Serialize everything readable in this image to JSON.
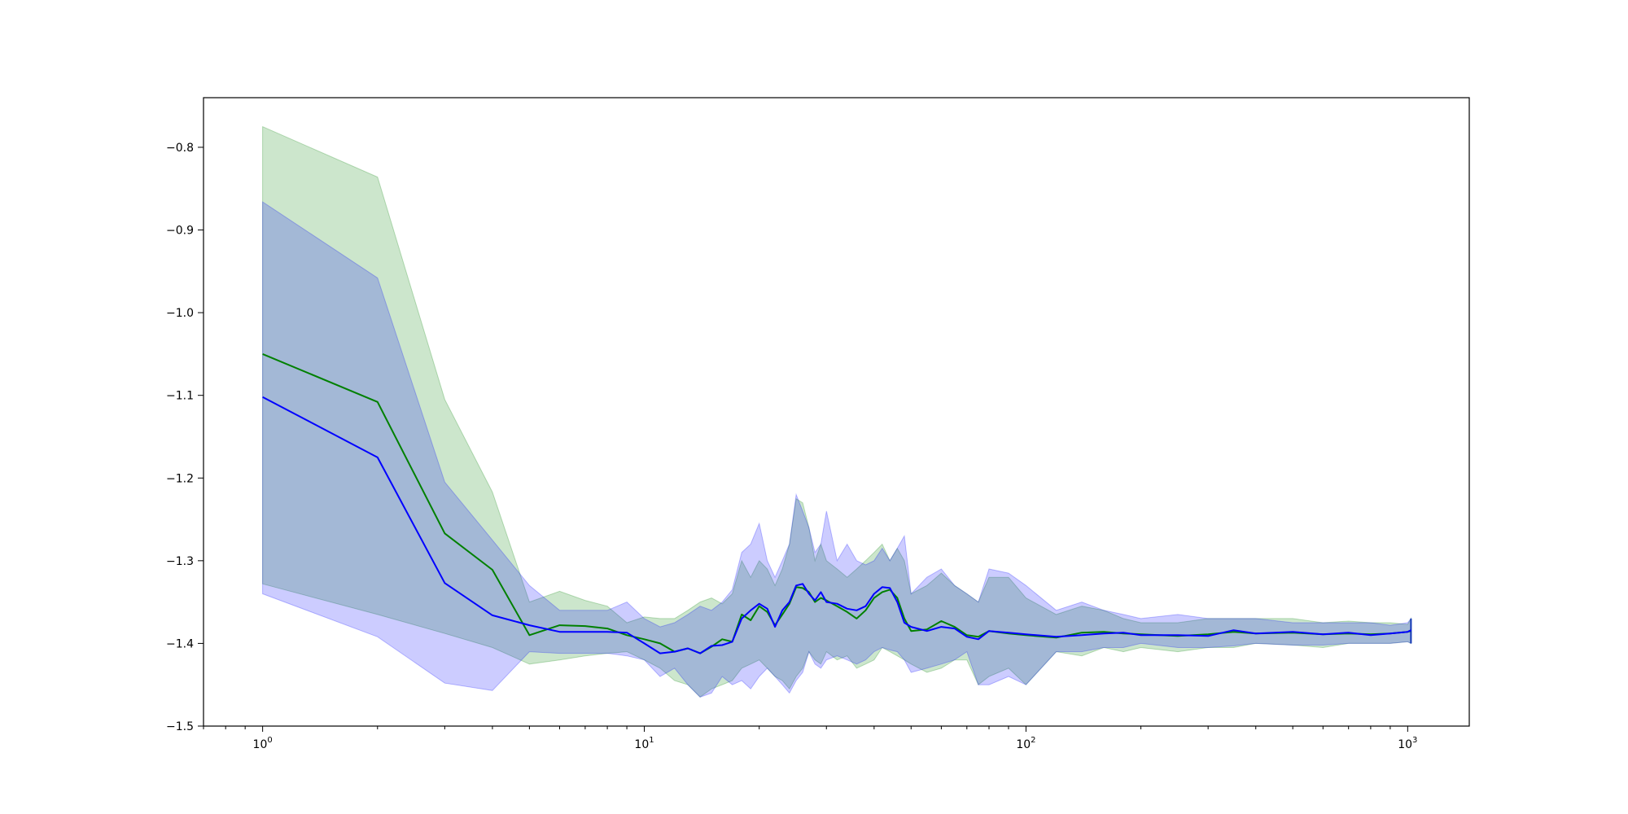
{
  "chart_data": {
    "type": "line",
    "title": "",
    "xlabel": "",
    "ylabel": "",
    "xscale": "log",
    "xlim": [
      0.7,
      1450
    ],
    "ylim": [
      -1.5,
      -0.74
    ],
    "grid": false,
    "legend": "none",
    "x_ticks": [
      {
        "value": 1,
        "base": "10",
        "exp": "0"
      },
      {
        "value": 10,
        "base": "10",
        "exp": "1"
      },
      {
        "value": 100,
        "base": "10",
        "exp": "2"
      },
      {
        "value": 1000,
        "base": "10",
        "exp": "3"
      }
    ],
    "y_ticks": [
      {
        "value": -0.8,
        "label": "−0.8"
      },
      {
        "value": -0.9,
        "label": "−0.9"
      },
      {
        "value": -1.0,
        "label": "−1.0"
      },
      {
        "value": -1.1,
        "label": "−1.1"
      },
      {
        "value": -1.2,
        "label": "−1.2"
      },
      {
        "value": -1.3,
        "label": "−1.3"
      },
      {
        "value": -1.4,
        "label": "−1.4"
      },
      {
        "value": -1.5,
        "label": "−1.5"
      }
    ],
    "series": [
      {
        "color": "#008000",
        "band_color": "#008000",
        "band_opacity": 0.2,
        "x": [
          1,
          2,
          3,
          4,
          5,
          6,
          7,
          8,
          9,
          10,
          11,
          12,
          13,
          14,
          15,
          16,
          17,
          18,
          19,
          20,
          21,
          22,
          23,
          24,
          25,
          26,
          27,
          28,
          29,
          30,
          32,
          34,
          36,
          38,
          40,
          42,
          44,
          46,
          48,
          50,
          55,
          60,
          65,
          70,
          75,
          80,
          90,
          100,
          120,
          140,
          160,
          180,
          200,
          250,
          300,
          350,
          400,
          500,
          600,
          700,
          800,
          900,
          1000,
          1020
        ],
        "y": [
          -1.05,
          -1.108,
          -1.267,
          -1.311,
          -1.39,
          -1.378,
          -1.379,
          -1.382,
          -1.39,
          -1.395,
          -1.4,
          -1.41,
          -1.406,
          -1.412,
          -1.404,
          -1.395,
          -1.398,
          -1.365,
          -1.372,
          -1.355,
          -1.362,
          -1.378,
          -1.365,
          -1.352,
          -1.332,
          -1.333,
          -1.338,
          -1.35,
          -1.345,
          -1.348,
          -1.355,
          -1.362,
          -1.37,
          -1.36,
          -1.345,
          -1.338,
          -1.335,
          -1.345,
          -1.37,
          -1.385,
          -1.383,
          -1.373,
          -1.38,
          -1.39,
          -1.392,
          -1.385,
          -1.388,
          -1.39,
          -1.393,
          -1.387,
          -1.386,
          -1.388,
          -1.389,
          -1.391,
          -1.389,
          -1.386,
          -1.388,
          -1.387,
          -1.389,
          -1.388,
          -1.389,
          -1.388,
          -1.386,
          -1.385
        ],
        "upper": [
          -0.775,
          -0.836,
          -1.105,
          -1.217,
          -1.35,
          -1.337,
          -1.348,
          -1.355,
          -1.375,
          -1.368,
          -1.37,
          -1.37,
          -1.36,
          -1.35,
          -1.345,
          -1.352,
          -1.34,
          -1.3,
          -1.32,
          -1.3,
          -1.31,
          -1.33,
          -1.31,
          -1.28,
          -1.225,
          -1.23,
          -1.26,
          -1.3,
          -1.28,
          -1.3,
          -1.31,
          -1.32,
          -1.31,
          -1.3,
          -1.29,
          -1.28,
          -1.3,
          -1.285,
          -1.3,
          -1.34,
          -1.33,
          -1.315,
          -1.33,
          -1.34,
          -1.35,
          -1.32,
          -1.32,
          -1.345,
          -1.365,
          -1.355,
          -1.36,
          -1.37,
          -1.375,
          -1.375,
          -1.37,
          -1.37,
          -1.37,
          -1.37,
          -1.375,
          -1.373,
          -1.375,
          -1.375,
          -1.377,
          -1.37
        ],
        "lower": [
          -1.328,
          -1.365,
          -1.388,
          -1.405,
          -1.425,
          -1.42,
          -1.415,
          -1.412,
          -1.41,
          -1.42,
          -1.43,
          -1.445,
          -1.45,
          -1.465,
          -1.455,
          -1.45,
          -1.445,
          -1.43,
          -1.425,
          -1.42,
          -1.43,
          -1.44,
          -1.445,
          -1.455,
          -1.44,
          -1.43,
          -1.41,
          -1.42,
          -1.425,
          -1.41,
          -1.42,
          -1.415,
          -1.43,
          -1.425,
          -1.42,
          -1.405,
          -1.41,
          -1.415,
          -1.42,
          -1.425,
          -1.435,
          -1.43,
          -1.42,
          -1.42,
          -1.45,
          -1.44,
          -1.43,
          -1.45,
          -1.41,
          -1.415,
          -1.405,
          -1.41,
          -1.405,
          -1.41,
          -1.405,
          -1.405,
          -1.4,
          -1.402,
          -1.405,
          -1.4,
          -1.4,
          -1.4,
          -1.398,
          -1.4
        ]
      },
      {
        "color": "#0000ff",
        "band_color": "#0000ff",
        "band_opacity": 0.2,
        "x": [
          1,
          2,
          3,
          4,
          5,
          6,
          7,
          8,
          9,
          10,
          11,
          12,
          13,
          14,
          15,
          16,
          17,
          18,
          19,
          20,
          21,
          22,
          23,
          24,
          25,
          26,
          27,
          28,
          29,
          30,
          32,
          34,
          36,
          38,
          40,
          42,
          44,
          46,
          48,
          50,
          55,
          60,
          65,
          70,
          75,
          80,
          90,
          100,
          120,
          140,
          160,
          180,
          200,
          250,
          300,
          350,
          400,
          500,
          600,
          700,
          800,
          900,
          1000,
          1020
        ],
        "y": [
          -1.102,
          -1.175,
          -1.327,
          -1.366,
          -1.378,
          -1.386,
          -1.386,
          -1.386,
          -1.387,
          -1.4,
          -1.412,
          -1.41,
          -1.406,
          -1.412,
          -1.403,
          -1.402,
          -1.398,
          -1.37,
          -1.36,
          -1.352,
          -1.358,
          -1.38,
          -1.36,
          -1.35,
          -1.33,
          -1.328,
          -1.34,
          -1.348,
          -1.338,
          -1.35,
          -1.352,
          -1.358,
          -1.36,
          -1.355,
          -1.34,
          -1.332,
          -1.333,
          -1.35,
          -1.375,
          -1.38,
          -1.385,
          -1.38,
          -1.382,
          -1.392,
          -1.395,
          -1.385,
          -1.387,
          -1.389,
          -1.392,
          -1.39,
          -1.388,
          -1.387,
          -1.39,
          -1.39,
          -1.391,
          -1.384,
          -1.388,
          -1.386,
          -1.389,
          -1.387,
          -1.39,
          -1.388,
          -1.386,
          -1.384
        ],
        "upper": [
          -0.866,
          -0.958,
          -1.205,
          -1.275,
          -1.33,
          -1.36,
          -1.36,
          -1.36,
          -1.35,
          -1.37,
          -1.38,
          -1.375,
          -1.365,
          -1.355,
          -1.36,
          -1.35,
          -1.335,
          -1.29,
          -1.28,
          -1.255,
          -1.3,
          -1.32,
          -1.3,
          -1.28,
          -1.22,
          -1.24,
          -1.26,
          -1.29,
          -1.28,
          -1.24,
          -1.3,
          -1.28,
          -1.3,
          -1.305,
          -1.3,
          -1.285,
          -1.3,
          -1.285,
          -1.27,
          -1.34,
          -1.32,
          -1.31,
          -1.33,
          -1.34,
          -1.35,
          -1.31,
          -1.315,
          -1.33,
          -1.36,
          -1.35,
          -1.36,
          -1.365,
          -1.37,
          -1.365,
          -1.37,
          -1.37,
          -1.37,
          -1.375,
          -1.375,
          -1.375,
          -1.375,
          -1.378,
          -1.375,
          -1.37
        ],
        "lower": [
          -1.34,
          -1.392,
          -1.448,
          -1.457,
          -1.41,
          -1.412,
          -1.412,
          -1.412,
          -1.415,
          -1.42,
          -1.44,
          -1.43,
          -1.45,
          -1.465,
          -1.46,
          -1.44,
          -1.45,
          -1.445,
          -1.455,
          -1.44,
          -1.43,
          -1.44,
          -1.45,
          -1.46,
          -1.445,
          -1.435,
          -1.41,
          -1.425,
          -1.43,
          -1.42,
          -1.415,
          -1.42,
          -1.425,
          -1.42,
          -1.41,
          -1.405,
          -1.408,
          -1.41,
          -1.42,
          -1.435,
          -1.43,
          -1.425,
          -1.42,
          -1.41,
          -1.45,
          -1.45,
          -1.44,
          -1.45,
          -1.41,
          -1.41,
          -1.405,
          -1.405,
          -1.4,
          -1.405,
          -1.405,
          -1.403,
          -1.4,
          -1.402,
          -1.402,
          -1.4,
          -1.4,
          -1.4,
          -1.398,
          -1.4
        ]
      }
    ]
  }
}
